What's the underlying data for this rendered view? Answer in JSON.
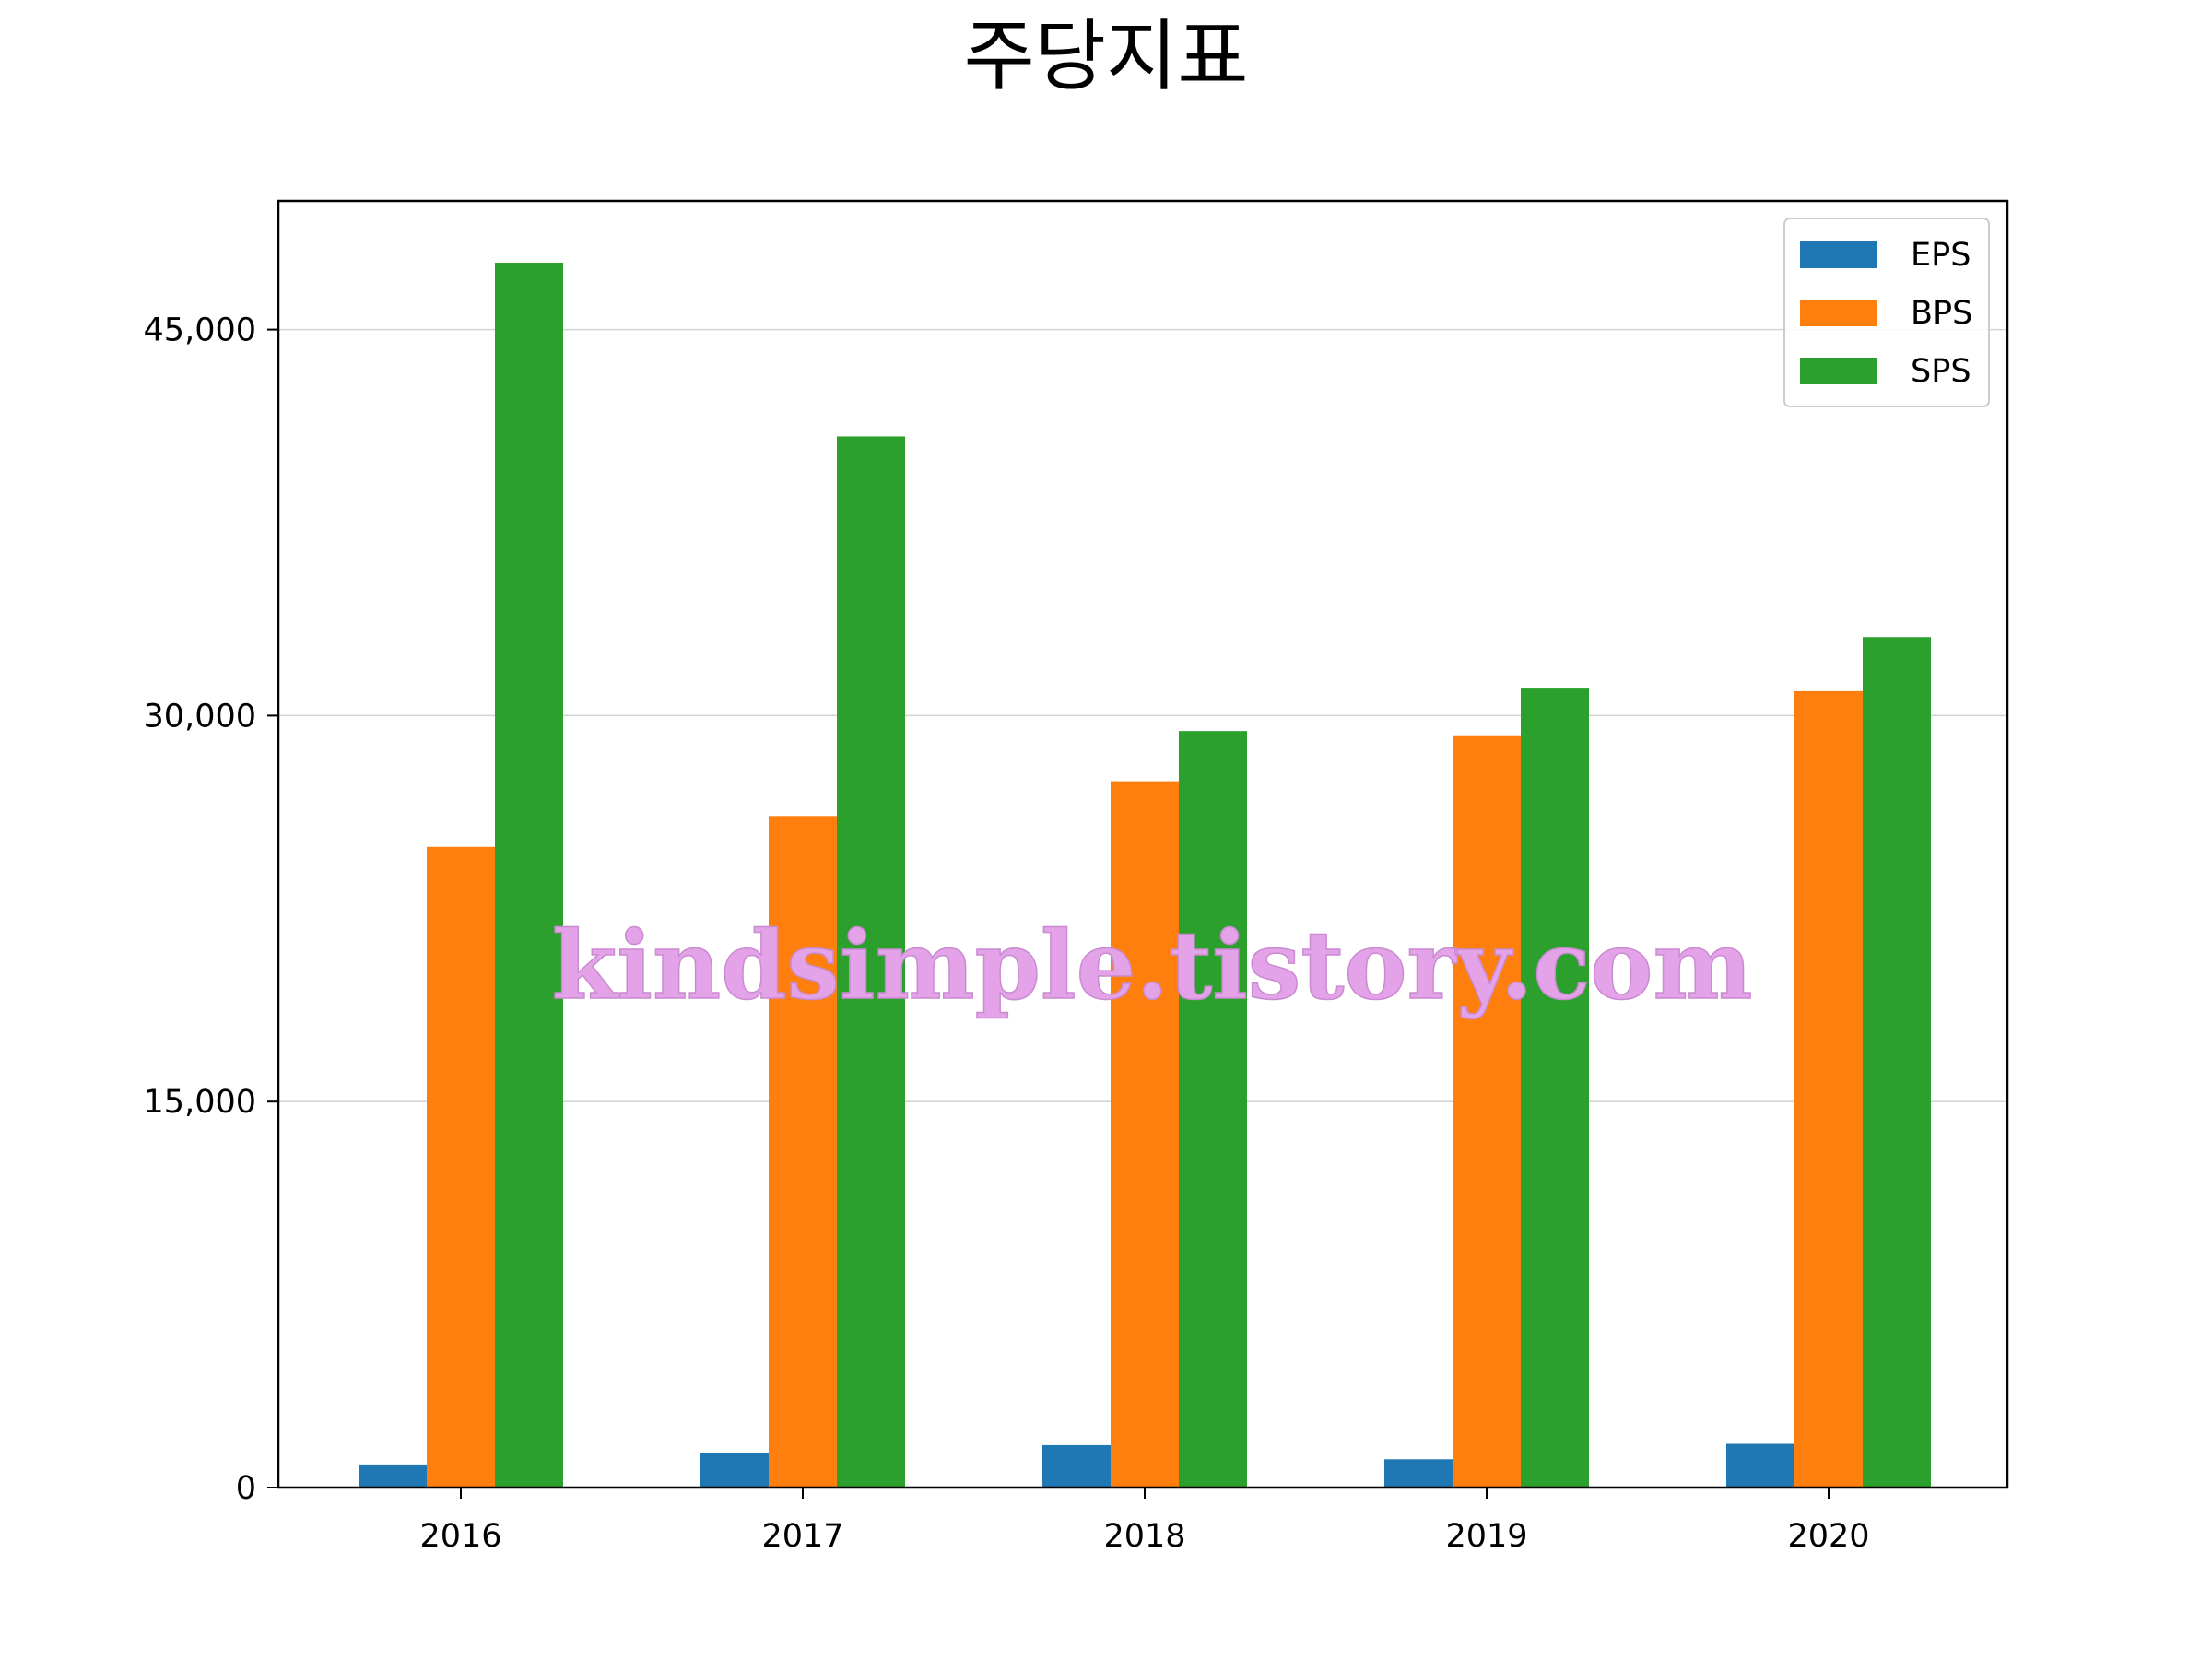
{
  "chart_data": {
    "type": "bar",
    "title": "주당지표",
    "xlabel": "",
    "ylabel": "",
    "categories": [
      "2016",
      "2017",
      "2018",
      "2019",
      "2020"
    ],
    "series": [
      {
        "name": "EPS",
        "color": "#1f77b4",
        "values": [
          900,
          1350,
          1650,
          1100,
          1700
        ]
      },
      {
        "name": "BPS",
        "color": "#ff7f0e",
        "values": [
          24900,
          26100,
          27450,
          29200,
          30950
        ]
      },
      {
        "name": "SPS",
        "color": "#2ca02c",
        "values": [
          47600,
          40850,
          29400,
          31050,
          33050
        ]
      }
    ],
    "ylim": [
      0,
      50000
    ],
    "yticks": [
      0,
      15000,
      30000,
      45000
    ],
    "ytick_labels": [
      "0",
      "15,000",
      "30,000",
      "45,000"
    ],
    "grid": "horizontal",
    "legend_position": "top-right",
    "watermark": "kindsimple.tistory.com"
  }
}
